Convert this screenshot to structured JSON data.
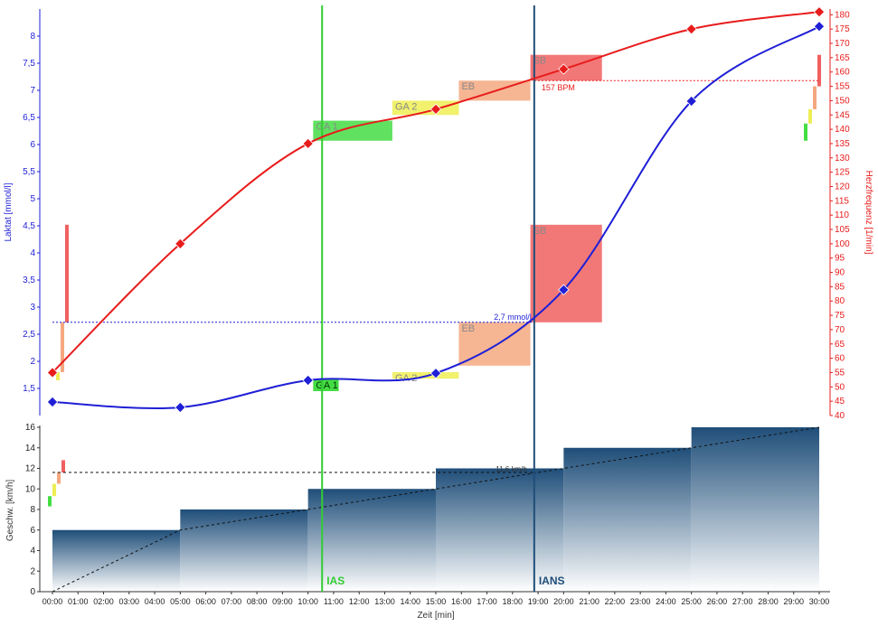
{
  "colors": {
    "lactate": "#1f1fd6",
    "heart_rate": "#e81c1c",
    "ias": "#33cc33",
    "ians": "#1f4e79",
    "speed_fill": "#2f5d8a",
    "zone_ga1": "#44dd44",
    "zone_ga2": "#eeee55",
    "zone_eb": "#f5a880",
    "zone_sb": "#f06060"
  },
  "chart_data": [
    {
      "type": "line",
      "title": "",
      "xlabel": "",
      "ylabel": "Laktat [mmol/l]",
      "y2label": "Herzfrequenz [1/min]",
      "xlim": [
        0,
        30
      ],
      "ylim": [
        1.0,
        8.5
      ],
      "y2lim": [
        40,
        182
      ],
      "yticks": [
        "1,5",
        "2",
        "2,5",
        "3",
        "3,5",
        "4",
        "4,5",
        "5",
        "5,5",
        "6",
        "6,5",
        "7",
        "7,5",
        "8"
      ],
      "y2ticks": [
        "40",
        "45",
        "50",
        "55",
        "60",
        "65",
        "70",
        "75",
        "80",
        "85",
        "90",
        "95",
        "100",
        "105",
        "110",
        "115",
        "120",
        "125",
        "130",
        "135",
        "140",
        "145",
        "150",
        "155",
        "160",
        "165",
        "170",
        "175",
        "180"
      ],
      "series": [
        {
          "name": "Laktat",
          "axis": "left",
          "x": [
            0,
            5,
            10,
            15,
            20,
            25,
            30
          ],
          "values": [
            1.25,
            1.15,
            1.65,
            1.78,
            3.32,
            6.8,
            8.18
          ]
        },
        {
          "name": "Herzfrequenz",
          "axis": "right",
          "x": [
            0,
            5,
            10,
            15,
            20,
            25,
            30
          ],
          "values": [
            55,
            100,
            135,
            147,
            161,
            175,
            181
          ]
        }
      ],
      "vertical_lines": [
        {
          "label": "IAS",
          "x": 10.55
        },
        {
          "label": "IANS",
          "x": 18.85
        }
      ],
      "reference_lines": [
        {
          "label": "2,7 mmol/l",
          "axis": "left",
          "value": 2.72
        },
        {
          "label": "157 BPM",
          "axis": "right",
          "value": 157
        }
      ],
      "zones_lactate": [
        {
          "label": "GA 1",
          "x0": 10.2,
          "x1": 11.2,
          "y0": 1.45,
          "y1": 1.67
        },
        {
          "label": "GA 2",
          "x0": 13.3,
          "x1": 15.9,
          "y0": 1.68,
          "y1": 1.8
        },
        {
          "label": "EB",
          "x0": 15.9,
          "x1": 18.7,
          "y0": 1.92,
          "y1": 2.72
        },
        {
          "label": "SB",
          "x0": 18.7,
          "x1": 21.5,
          "y0": 2.72,
          "y1": 4.52
        }
      ],
      "zones_heart_rate": [
        {
          "label": "GA 1",
          "x0": 10.2,
          "x1": 13.3,
          "y0": 136,
          "y1": 143
        },
        {
          "label": "GA 2",
          "x0": 13.3,
          "x1": 15.9,
          "y0": 145,
          "y1": 150
        },
        {
          "label": "EB",
          "x0": 15.9,
          "x1": 18.7,
          "y0": 150,
          "y1": 157
        },
        {
          "label": "SB",
          "x0": 18.7,
          "x1": 21.5,
          "y0": 157,
          "y1": 166
        }
      ]
    },
    {
      "type": "area",
      "title": "",
      "xlabel": "Zeit [min]",
      "ylabel": "Geschw. [km/h]",
      "xlim": [
        0,
        30
      ],
      "ylim": [
        0,
        16
      ],
      "yticks": [
        "0",
        "2",
        "4",
        "6",
        "8",
        "10",
        "12",
        "14",
        "16"
      ],
      "xticks": [
        "00:00",
        "01:00",
        "02:00",
        "03:00",
        "04:00",
        "05:00",
        "06:00",
        "07:00",
        "08:00",
        "09:00",
        "10:00",
        "11:00",
        "12:00",
        "13:00",
        "14:00",
        "15:00",
        "16:00",
        "17:00",
        "18:00",
        "19:00",
        "20:00",
        "21:00",
        "22:00",
        "23:00",
        "24:00",
        "25:00",
        "26:00",
        "27:00",
        "28:00",
        "29:00",
        "30:00"
      ],
      "steps": [
        {
          "x0": 0,
          "x1": 5,
          "value": 6
        },
        {
          "x0": 5,
          "x1": 10,
          "value": 8
        },
        {
          "x0": 10,
          "x1": 15,
          "value": 10
        },
        {
          "x0": 15,
          "x1": 20,
          "value": 12
        },
        {
          "x0": 20,
          "x1": 25,
          "value": 14
        },
        {
          "x0": 25,
          "x1": 30,
          "value": 16
        }
      ],
      "ramp": {
        "x": [
          0,
          5,
          30
        ],
        "values": [
          0,
          6,
          16
        ]
      },
      "reference_line": {
        "label": "11,6 km/h",
        "value": 11.6
      }
    }
  ]
}
